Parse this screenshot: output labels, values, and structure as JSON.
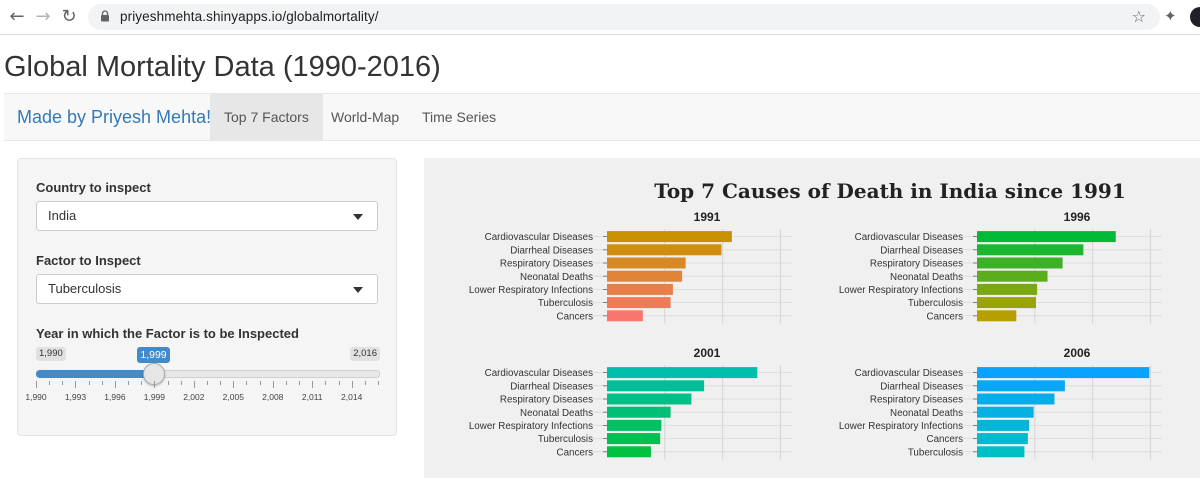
{
  "browser": {
    "url": "priyeshmehta.shinyapps.io/globalmortality/"
  },
  "page": {
    "title": "Global Mortality Data (1990-2016)"
  },
  "navbar": {
    "brand": "Made by Priyesh Mehta!",
    "tabs": [
      {
        "label": "Top 7 Factors",
        "active": true
      },
      {
        "label": "World-Map",
        "active": false
      },
      {
        "label": "Time Series",
        "active": false
      }
    ]
  },
  "sidebar": {
    "country_label": "Country to inspect",
    "country_value": "India",
    "factor_label": "Factor to Inspect",
    "factor_value": "Tuberculosis",
    "year_label": "Year in which the Factor is to be Inspected",
    "slider": {
      "min_label": "1,990",
      "max_label": "2,016",
      "value_label": "1,999",
      "min": 1990,
      "max": 2016,
      "value": 1999,
      "grid_labels": [
        "1,990",
        "1,993",
        "1,996",
        "1,999",
        "2,002",
        "2,005",
        "2,008",
        "2,011",
        "2,014"
      ]
    }
  },
  "chart_data": {
    "type": "bar",
    "title": "Top 7 Causes of Death in India since 1991",
    "panels": [
      {
        "year": "1991",
        "color_start": "#c89100",
        "color_end": "#f8766d",
        "categories": [
          "Cardiovascular Diseases",
          "Diarrheal Diseases",
          "Respiratory Diseases",
          "Neonatal Deaths",
          "Lower Respiratory Infections",
          "Tuberculosis",
          "Cancers"
        ],
        "values": [
          108,
          99,
          68,
          65,
          57,
          55,
          31
        ]
      },
      {
        "year": "1996",
        "color_start": "#00ba38",
        "color_end": "#b79f00",
        "categories": [
          "Cardiovascular Diseases",
          "Diarrheal Diseases",
          "Respiratory Diseases",
          "Neonatal Deaths",
          "Lower Respiratory Infections",
          "Tuberculosis",
          "Cancers"
        ],
        "values": [
          120,
          92,
          74,
          61,
          52,
          51,
          34
        ]
      },
      {
        "year": "2001",
        "color_start": "#00bfaa",
        "color_end": "#00c040",
        "categories": [
          "Cardiovascular Diseases",
          "Diarrheal Diseases",
          "Respiratory Diseases",
          "Neonatal Deaths",
          "Lower Respiratory Infections",
          "Tuberculosis",
          "Cancers"
        ],
        "values": [
          130,
          84,
          73,
          55,
          47,
          46,
          38
        ]
      },
      {
        "year": "2006",
        "color_start": "#0aa2ff",
        "color_end": "#00bfc4",
        "categories": [
          "Cardiovascular Diseases",
          "Diarrheal Diseases",
          "Respiratory Diseases",
          "Neonatal Deaths",
          "Lower Respiratory Infections",
          "Cancers",
          "Tuberculosis"
        ],
        "values": [
          149,
          76,
          67,
          49,
          45,
          44,
          41
        ]
      }
    ],
    "xlim": [
      0,
      160
    ],
    "grid": true
  }
}
